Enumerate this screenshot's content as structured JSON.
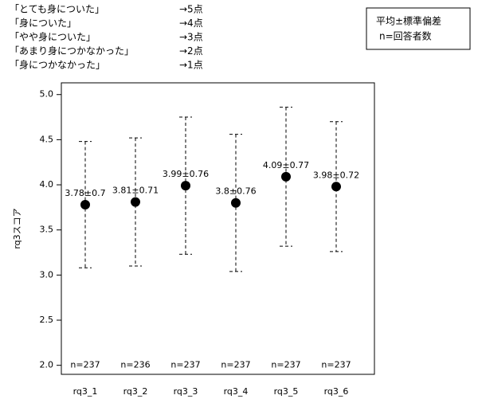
{
  "chart_data": {
    "type": "errorbar",
    "y_label": "rq3スコア",
    "categories": [
      "rq3_1",
      "rq3_2",
      "rq3_3",
      "rq3_4",
      "rq3_5",
      "rq3_6"
    ],
    "values": [
      3.78,
      3.81,
      3.99,
      3.8,
      4.09,
      3.98
    ],
    "errors": [
      0.7,
      0.71,
      0.76,
      0.76,
      0.77,
      0.72
    ],
    "value_labels": [
      "3.78±0.7",
      "3.81±0.71",
      "3.99±0.76",
      "3.8±0.76",
      "4.09±0.77",
      "3.98±0.72"
    ],
    "n_labels": [
      "n=237",
      "n=236",
      "n=237",
      "n=237",
      "n=237",
      "n=237"
    ],
    "color": "#000000",
    "ylim": [
      1.9,
      5.13
    ],
    "yticks": [
      {
        "value": 2,
        "label": "2.0"
      },
      {
        "value": 2.5,
        "label": "2.5"
      },
      {
        "value": 3,
        "label": "3.0"
      },
      {
        "value": 3.5,
        "label": "3.5"
      },
      {
        "value": 4,
        "label": "4.0"
      },
      {
        "value": 4.5,
        "label": "4.5"
      },
      {
        "value": 5,
        "label": "5.0"
      }
    ],
    "scale_notes": [
      {
        "label": "「とても身についた」",
        "score": "→5点"
      },
      {
        "label": "「身についた」",
        "score": "→4点"
      },
      {
        "label": "「やや身についた」",
        "score": "→3点"
      },
      {
        "label": "「あまり身につかなかった」",
        "score": "→2点"
      },
      {
        "label": "「身につかなかった」",
        "score": "→1点"
      }
    ],
    "legend_box": [
      "平均±標準偏差",
      "n=回答者数"
    ]
  }
}
